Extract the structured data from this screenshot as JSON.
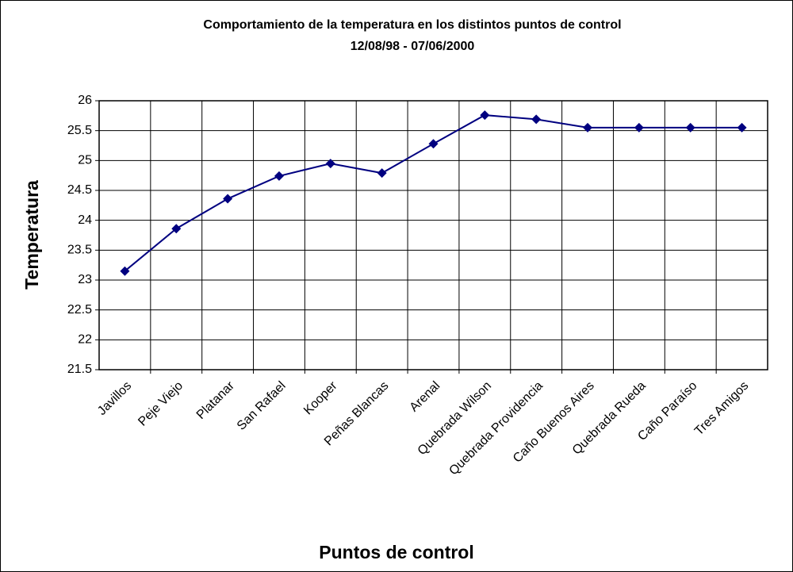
{
  "chart_data": {
    "type": "line",
    "title": "Comportamiento de la temperatura en los distintos puntos de control",
    "subtitle": "12/08/98 - 07/06/2000",
    "y_label": "Temperatura",
    "x_label": "Puntos de control",
    "categories": [
      "Javillos",
      "Peje Viejo",
      "Platanar",
      "San Rafael",
      "Kooper",
      "Peñas Blancas",
      "Arenal",
      "Quebrada Wilson",
      "Quebrada Providencia",
      "Caño Buenos Aires",
      "Quebrada Rueda",
      "Caño Paraíso",
      "Tres Amigos"
    ],
    "series": [
      {
        "color": "#000080",
        "values": [
          23.15,
          23.86,
          24.36,
          24.74,
          24.95,
          24.79,
          25.28,
          25.76,
          25.69,
          25.55,
          25.55,
          25.55,
          25.55
        ]
      }
    ],
    "ylim": [
      21.5,
      26
    ],
    "yticks": [
      21.5,
      22,
      22.5,
      23,
      23.5,
      24,
      24.5,
      25,
      25.5,
      26
    ],
    "grid": true
  }
}
